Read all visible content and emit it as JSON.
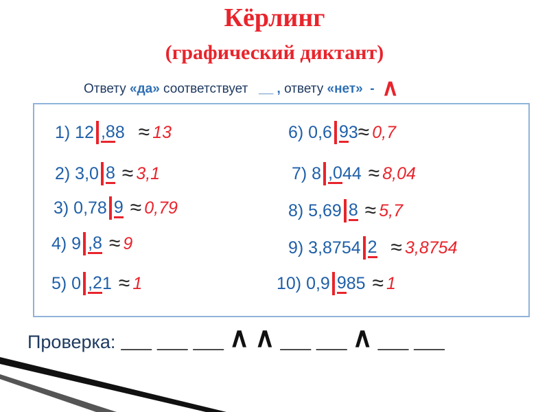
{
  "header": {
    "title": "Кёрлинг",
    "subtitle": "(графический диктант)"
  },
  "instruction": {
    "part1": "Ответу",
    "yes": "«да»",
    "part2": "соответствует",
    "yes_mark": "__ ,",
    "part3": "ответу",
    "no": "«нет»",
    "dash": "-",
    "no_mark": "∧"
  },
  "approx_sign": "≈",
  "items": [
    {
      "pre": "1) 12",
      "mid": ",8",
      "post": "8",
      "answer": "13"
    },
    {
      "pre": "2) 3,0",
      "mid": "8",
      "answer": "3,1"
    },
    {
      "pre": "3) 0,78",
      "mid": "9",
      "answer": "0,79"
    },
    {
      "pre": "4) 9",
      "mid": ",8",
      "answer": "9"
    },
    {
      "pre": "5) 0",
      "mid": ",2",
      "post": "1",
      "answer": "1"
    },
    {
      "pre": "6) 0,6",
      "mid": "9",
      "post": "3",
      "answer": "0,7"
    },
    {
      "pre": "7) 8",
      "mid": ",0",
      "post": "44",
      "answer": "8,04"
    },
    {
      "pre": "8) 5,69",
      "mid": "8",
      "answer": "5,7"
    },
    {
      "pre": "9) 3,8754",
      "mid": "2",
      "answer": "3,8754"
    },
    {
      "pre": "10) 0,9",
      "mid": "9",
      "post": "85",
      "answer": "1"
    }
  ],
  "check": {
    "label": "Проверка:",
    "marks": [
      "__",
      "__",
      "__",
      "∧",
      "∧",
      "__",
      "__",
      "∧",
      "__",
      "__"
    ]
  }
}
